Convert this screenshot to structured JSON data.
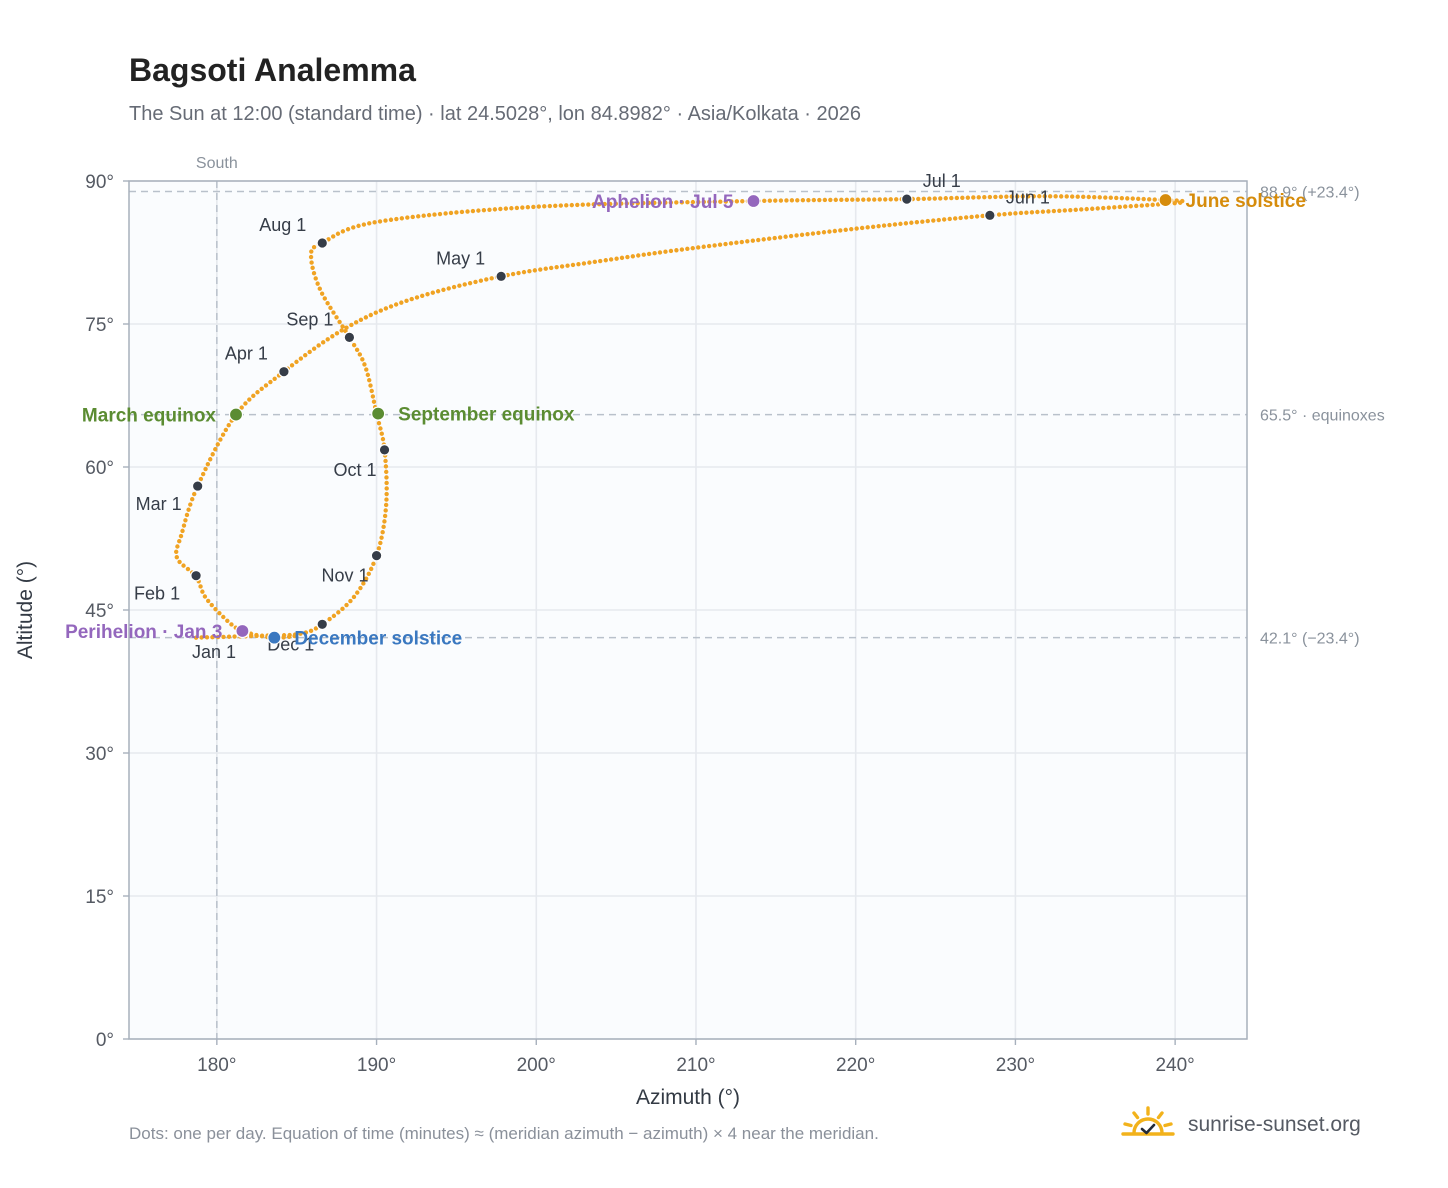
{
  "title": "Bagsoti Analemma",
  "subtitle": "The Sun at 12:00 (standard time) · lat 24.5028°, lon 84.8982° · Asia/Kolkata · 2026",
  "footnote": "Dots: one per day. Equation of time (minutes) ≈ (meridian azimuth − azimuth) × 4 near the meridian.",
  "brand": {
    "name": "sunrise-sunset.org",
    "logo_icon": "sun-check-icon"
  },
  "colors": {
    "path": "#f0a323",
    "month_marker": "#363d48",
    "equinox": "#5b8c32",
    "aphelion_perihelion": "#9467bd",
    "june_solstice": "#d68c0c",
    "december_solstice": "#3a78c0",
    "reference_line": "#b9c1cb",
    "plot_background": "#fafcfe",
    "grid": "#e6e9ee"
  },
  "chart_data": {
    "type": "scatter",
    "title": "Bagsoti Analemma",
    "xlabel": "Azimuth (°)",
    "ylabel": "Altitude (°)",
    "xlim": [
      174.5,
      244.5
    ],
    "ylim": [
      0,
      90
    ],
    "x_ticks": [
      180,
      190,
      200,
      210,
      220,
      230,
      240
    ],
    "y_ticks": [
      0,
      15,
      30,
      45,
      60,
      75,
      90
    ],
    "x_tick_labels": [
      "180°",
      "190°",
      "200°",
      "210°",
      "220°",
      "230°",
      "240°"
    ],
    "y_tick_labels": [
      "0°",
      "15°",
      "30°",
      "45°",
      "60°",
      "75°",
      "90°"
    ],
    "grid": true,
    "meridian": {
      "azimuth": 180,
      "label": "South"
    },
    "reference_lines": [
      {
        "altitude": 88.9,
        "label": "88.9° (+23.4°)"
      },
      {
        "altitude": 65.5,
        "label": "65.5° · equinoxes"
      },
      {
        "altitude": 42.1,
        "label": "42.1° (−23.4°)"
      }
    ],
    "path_anchors": [
      {
        "az": 178.7,
        "alt": 42.1
      },
      {
        "az": 182.8,
        "alt": 42.3
      },
      {
        "az": 185.2,
        "alt": 42.5
      },
      {
        "az": 186.6,
        "alt": 43.5
      },
      {
        "az": 188.6,
        "alt": 46.4
      },
      {
        "az": 190.0,
        "alt": 50.7
      },
      {
        "az": 190.6,
        "alt": 56.0
      },
      {
        "az": 190.5,
        "alt": 61.8
      },
      {
        "az": 190.0,
        "alt": 65.6
      },
      {
        "az": 189.3,
        "alt": 70.5
      },
      {
        "az": 188.3,
        "alt": 73.6
      },
      {
        "az": 186.5,
        "alt": 78.5
      },
      {
        "az": 185.9,
        "alt": 82.2
      },
      {
        "az": 186.6,
        "alt": 83.5
      },
      {
        "az": 190.0,
        "alt": 85.7
      },
      {
        "az": 200.0,
        "alt": 87.3
      },
      {
        "az": 213.6,
        "alt": 87.9
      },
      {
        "az": 223.2,
        "alt": 88.1
      },
      {
        "az": 232.0,
        "alt": 88.4
      },
      {
        "az": 239.4,
        "alt": 88.0
      },
      {
        "az": 240.5,
        "alt": 87.8
      },
      {
        "az": 239.4,
        "alt": 87.6
      },
      {
        "az": 234.0,
        "alt": 87.0
      },
      {
        "az": 228.4,
        "alt": 86.4
      },
      {
        "az": 220.0,
        "alt": 85.0
      },
      {
        "az": 210.0,
        "alt": 83.0
      },
      {
        "az": 204.0,
        "alt": 81.6
      },
      {
        "az": 197.8,
        "alt": 80.0
      },
      {
        "az": 192.0,
        "alt": 77.5
      },
      {
        "az": 188.0,
        "alt": 74.5
      },
      {
        "az": 184.2,
        "alt": 70.0
      },
      {
        "az": 181.2,
        "alt": 65.5
      },
      {
        "az": 178.8,
        "alt": 58.0
      },
      {
        "az": 177.8,
        "alt": 53.0
      },
      {
        "az": 177.5,
        "alt": 50.5
      },
      {
        "az": 178.7,
        "alt": 48.5
      },
      {
        "az": 179.3,
        "alt": 46.3
      },
      {
        "az": 180.7,
        "alt": 43.8
      },
      {
        "az": 181.6,
        "alt": 42.8
      },
      {
        "az": 183.0,
        "alt": 42.2
      },
      {
        "az": 184.0,
        "alt": 42.1
      },
      {
        "az": 185.0,
        "alt": 42.3
      }
    ],
    "month_markers": [
      {
        "label": "Jan 1",
        "az": 181.7,
        "alt": 42.7,
        "label_pos": "below-left"
      },
      {
        "label": "Feb 1",
        "az": 178.7,
        "alt": 48.6,
        "label_pos": "left"
      },
      {
        "label": "Mar 1",
        "az": 178.8,
        "alt": 58.0,
        "label_pos": "left"
      },
      {
        "label": "Apr 1",
        "az": 184.2,
        "alt": 70.0,
        "label_pos": "above-left"
      },
      {
        "label": "May 1",
        "az": 197.8,
        "alt": 80.0,
        "label_pos": "above-left"
      },
      {
        "label": "Jun 1",
        "az": 228.4,
        "alt": 86.4,
        "label_pos": "above-right"
      },
      {
        "label": "Jul 1",
        "az": 223.2,
        "alt": 88.1,
        "label_pos": "above-right"
      },
      {
        "label": "Aug 1",
        "az": 186.6,
        "alt": 83.5,
        "label_pos": "above-left"
      },
      {
        "label": "Sep 1",
        "az": 188.3,
        "alt": 73.6,
        "label_pos": "above-left"
      },
      {
        "label": "Oct 1",
        "az": 190.5,
        "alt": 61.8,
        "label_pos": "below-left"
      },
      {
        "label": "Nov 1",
        "az": 190.0,
        "alt": 50.7,
        "label_pos": "below-left"
      },
      {
        "label": "Dec 1",
        "az": 186.6,
        "alt": 43.5,
        "label_pos": "below-left"
      }
    ],
    "events": [
      {
        "label": "March equinox",
        "az": 181.2,
        "alt": 65.5,
        "color_key": "equinox",
        "label_pos": "left"
      },
      {
        "label": "September equinox",
        "az": 190.1,
        "alt": 65.6,
        "color_key": "equinox",
        "label_pos": "right"
      },
      {
        "label": "Perihelion · Jan 3",
        "az": 181.6,
        "alt": 42.8,
        "color_key": "aphelion_perihelion",
        "label_pos": "left"
      },
      {
        "label": "Aphelion · Jul 5",
        "az": 213.6,
        "alt": 87.9,
        "color_key": "aphelion_perihelion",
        "label_pos": "left"
      },
      {
        "label": "June solstice",
        "az": 239.4,
        "alt": 88.0,
        "color_key": "june_solstice",
        "label_pos": "right"
      },
      {
        "label": "December solstice",
        "az": 183.6,
        "alt": 42.1,
        "color_key": "december_solstice",
        "label_pos": "right"
      }
    ]
  }
}
